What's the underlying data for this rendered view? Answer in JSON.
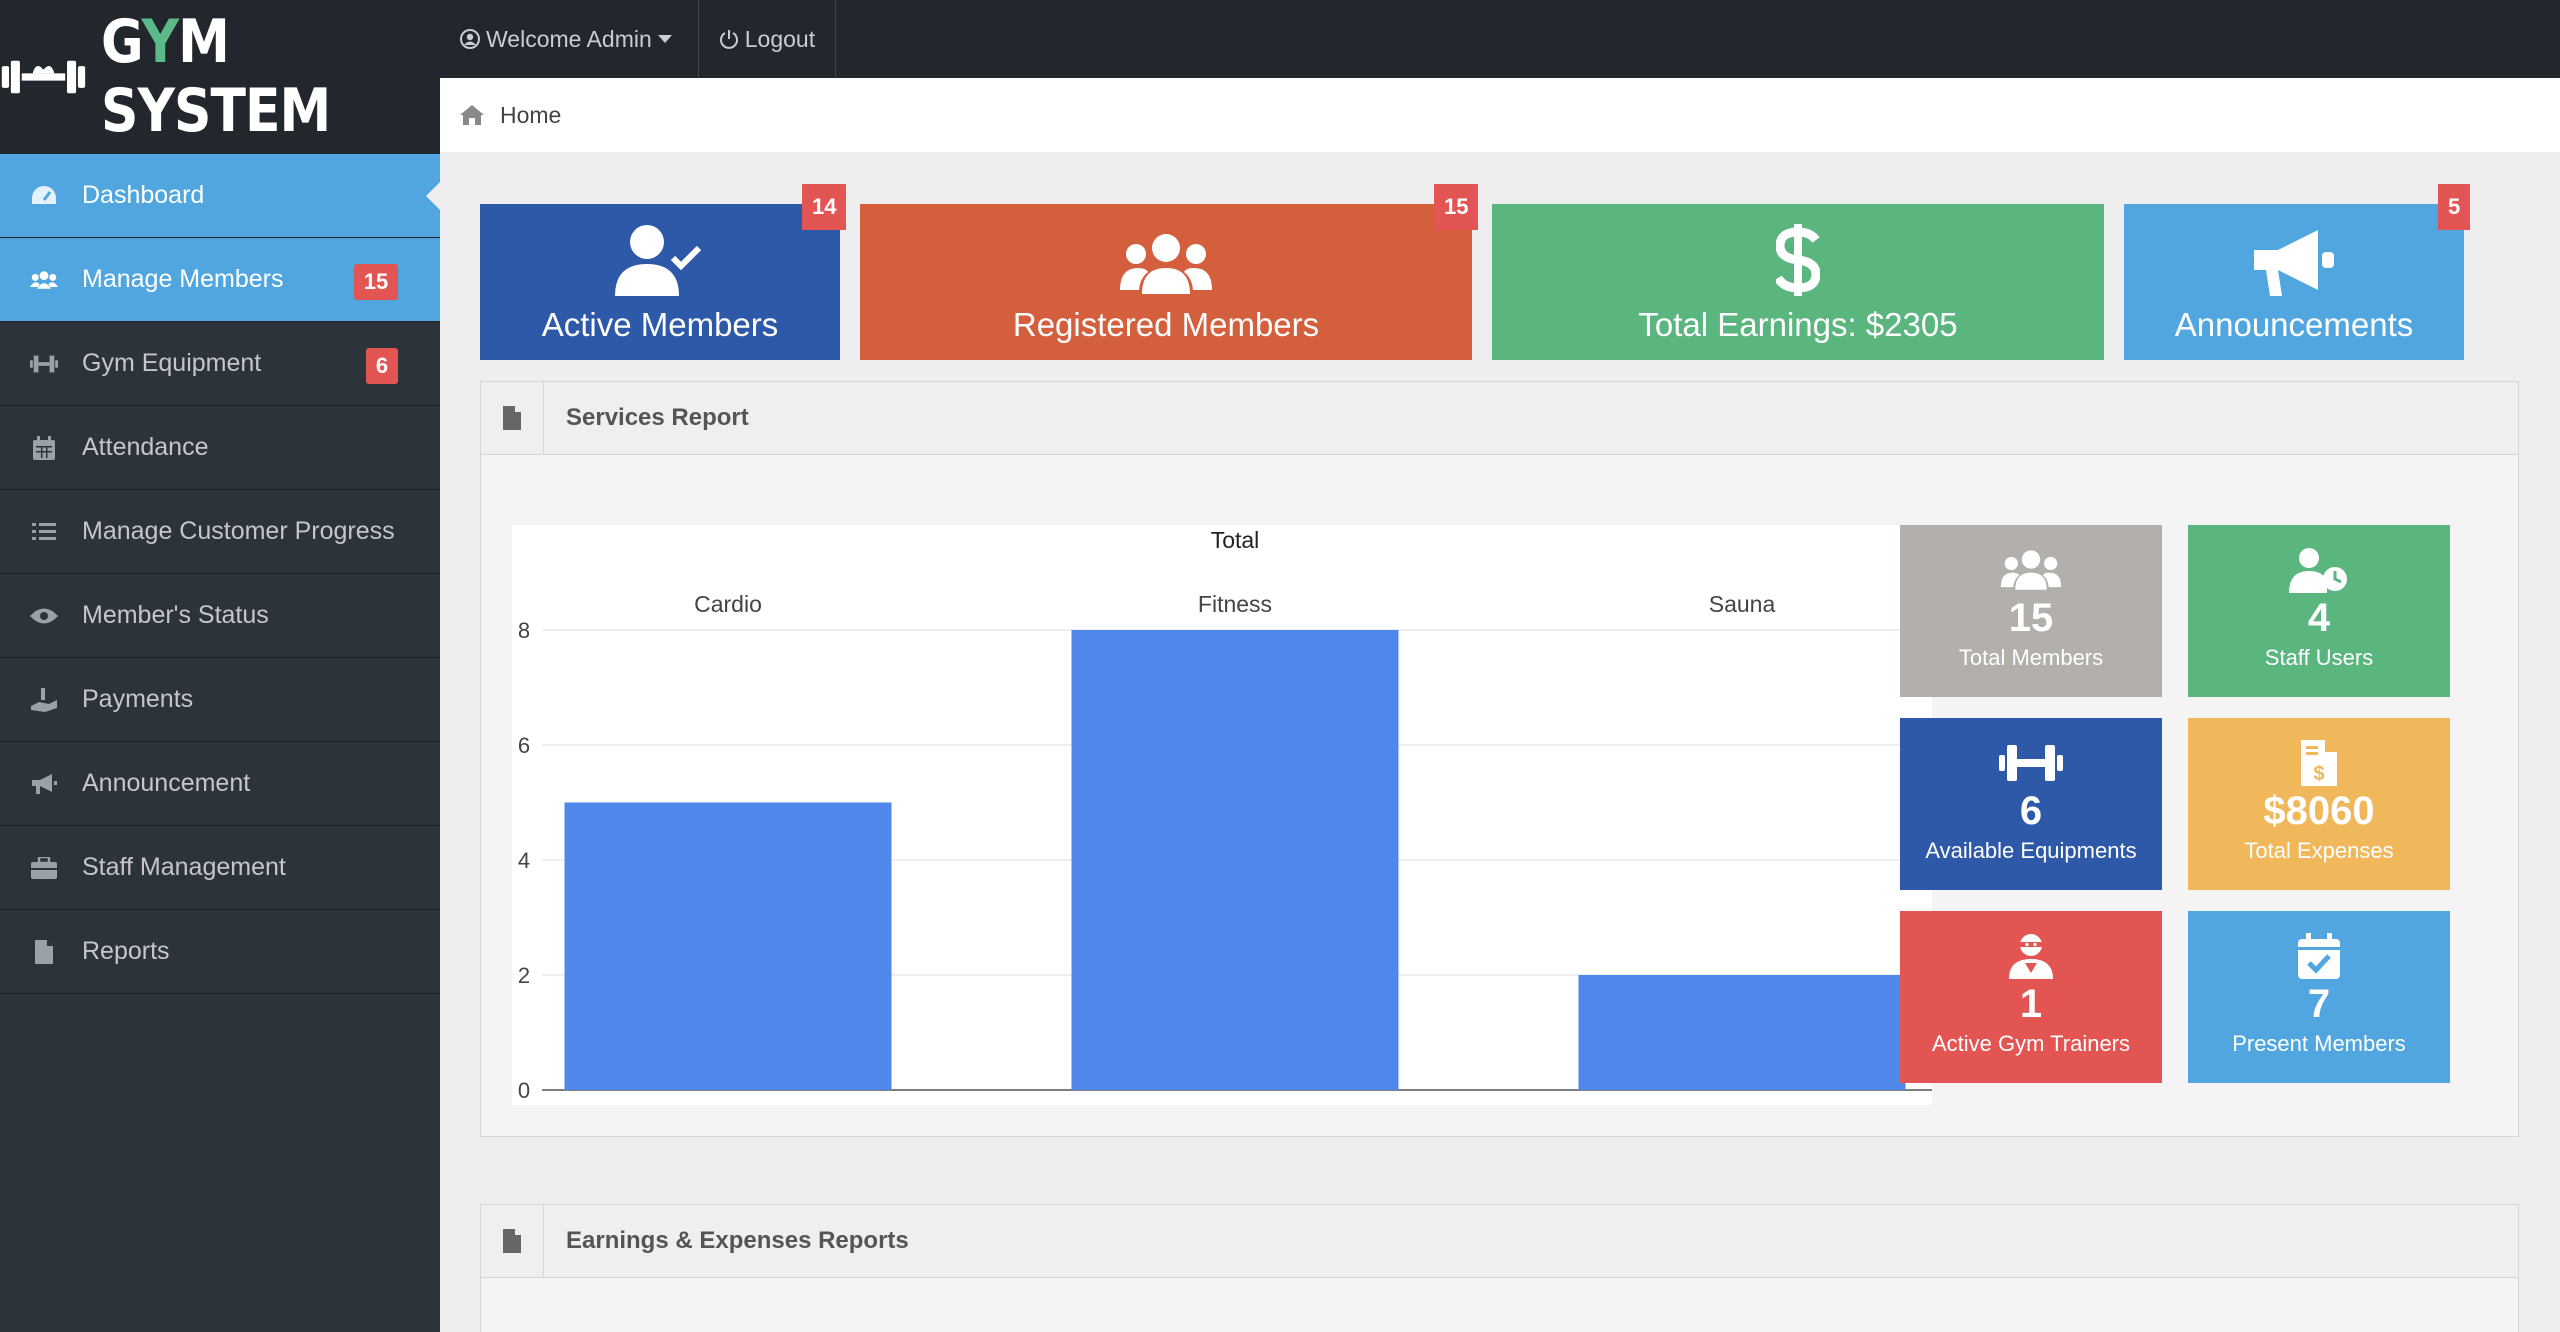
{
  "brand": {
    "logo_text_1": "G",
    "logo_text_y": "Y",
    "logo_text_2": "M SYSTEM"
  },
  "topbar": {
    "welcome": "Welcome Admin",
    "logout": "Logout"
  },
  "breadcrumb": {
    "home": "Home"
  },
  "sidebar": {
    "items": [
      {
        "label": "Dashboard",
        "icon": "dashboard-icon"
      },
      {
        "label": "Manage Members",
        "icon": "users-icon",
        "badge": "15"
      },
      {
        "label": "Gym Equipment",
        "icon": "dumbbell-icon",
        "badge": "6"
      },
      {
        "label": "Attendance",
        "icon": "calendar-icon"
      },
      {
        "label": "Manage Customer Progress",
        "icon": "tasks-icon"
      },
      {
        "label": "Member's Status",
        "icon": "eye-icon"
      },
      {
        "label": "Payments",
        "icon": "hand-dollar-icon"
      },
      {
        "label": "Announcement",
        "icon": "bullhorn-icon"
      },
      {
        "label": "Staff Management",
        "icon": "briefcase-icon"
      },
      {
        "label": "Reports",
        "icon": "file-icon"
      }
    ]
  },
  "stats": [
    {
      "label": "Active Members",
      "badge": "14",
      "color": "#2e59a8",
      "icon": "user-check-icon"
    },
    {
      "label": "Registered Members",
      "badge": "15",
      "color": "#d35f3d",
      "icon": "users-icon"
    },
    {
      "label": "Total Earnings: $2305",
      "color": "#5bb57f",
      "icon": "dollar-icon"
    },
    {
      "label": "Announcements",
      "badge": "5",
      "color": "#51a6e0",
      "icon": "bullhorn-icon"
    }
  ],
  "panels": {
    "services": {
      "title": "Services Report"
    },
    "earnings": {
      "title": "Earnings & Expenses Reports"
    }
  },
  "chart_data": {
    "type": "bar",
    "title": "Total",
    "categories": [
      "Cardio",
      "Fitness",
      "Sauna"
    ],
    "values": [
      5,
      8,
      2
    ],
    "ylim": [
      0,
      8
    ],
    "yticks": [
      "0",
      "2",
      "4",
      "6",
      "8"
    ],
    "color": "#5087ea"
  },
  "tiles": [
    {
      "value": "15",
      "label": "Total Members",
      "color": "#b3b0ab",
      "icon": "users-icon"
    },
    {
      "value": "4",
      "label": "Staff Users",
      "color": "#5bb57f",
      "icon": "user-clock-icon"
    },
    {
      "value": "6",
      "label": "Available Equipments",
      "color": "#2e59a8",
      "icon": "dumbbell-icon"
    },
    {
      "value": "$8060",
      "label": "Total Expenses",
      "color": "#f0b85a",
      "icon": "file-invoice-dollar-icon"
    },
    {
      "value": "1",
      "label": "Active Gym Trainers",
      "color": "#e35553",
      "icon": "user-ninja-icon"
    },
    {
      "value": "7",
      "label": "Present Members",
      "color": "#51a6e0",
      "icon": "calendar-check-icon"
    }
  ]
}
